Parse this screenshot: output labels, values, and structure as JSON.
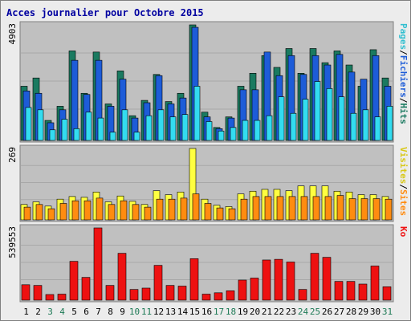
{
  "title": "Acces journalier pour Octobre 2015",
  "colors": {
    "panel_bg": "#c0c0c0",
    "hits": "#1a7a60",
    "files": "#1d5cd8",
    "pages": "#33dcf0",
    "visits": "#ffff40",
    "sites": "#ff8c10",
    "kb": "#ee1111",
    "weekend_label": "#1e7a56",
    "weekday_label": "#000000",
    "slash": "#000000"
  },
  "chart_data": [
    {
      "type": "bar",
      "panel": "hits-files-pages",
      "ymax_label": "4903",
      "ylim": [
        0,
        4903
      ],
      "legend": [
        {
          "text": "Pages",
          "color": "#33bfd0"
        },
        {
          "text": "/",
          "color": "#000000"
        },
        {
          "text": "Fichiers",
          "color": "#1d5cd8"
        },
        {
          "text": "/",
          "color": "#000000"
        },
        {
          "text": "Hits",
          "color": "#1a7a60"
        }
      ],
      "categories": [
        "1",
        "2",
        "3",
        "4",
        "5",
        "6",
        "7",
        "8",
        "9",
        "10",
        "11",
        "12",
        "13",
        "14",
        "15",
        "16",
        "17",
        "18",
        "19",
        "20",
        "21",
        "22",
        "23",
        "24",
        "25",
        "26",
        "27",
        "28",
        "29",
        "30",
        "31"
      ],
      "series": [
        {
          "name": "Hits",
          "values": [
            2300,
            2650,
            850,
            1450,
            3800,
            2000,
            3750,
            1550,
            2950,
            1050,
            1700,
            2800,
            1650,
            2000,
            4903,
            1200,
            550,
            1000,
            2300,
            2850,
            3600,
            3100,
            3900,
            2850,
            3900,
            3300,
            3800,
            3200,
            2300,
            3850,
            2650
          ]
        },
        {
          "name": "Fichiers",
          "values": [
            2100,
            2000,
            750,
            1300,
            3400,
            1950,
            3400,
            1450,
            2600,
            950,
            1600,
            2750,
            1550,
            1800,
            4800,
            1000,
            500,
            950,
            2150,
            2150,
            3750,
            2750,
            3600,
            2800,
            3600,
            3200,
            3650,
            2900,
            2600,
            3600,
            2300
          ]
        },
        {
          "name": "Pages",
          "values": [
            1400,
            1300,
            450,
            900,
            500,
            1200,
            950,
            350,
            1300,
            350,
            1050,
            1300,
            1000,
            1100,
            2300,
            800,
            400,
            550,
            850,
            850,
            1050,
            1850,
            1150,
            1750,
            2500,
            2200,
            1850,
            1150,
            1300,
            1000,
            1450
          ]
        }
      ]
    },
    {
      "type": "bar",
      "panel": "visits-sites",
      "ymax_label": "269",
      "ylim": [
        0,
        269
      ],
      "legend": [
        {
          "text": "Visites",
          "color": "#d8c818"
        },
        {
          "text": "/",
          "color": "#000000"
        },
        {
          "text": "Sites",
          "color": "#ff8c10"
        }
      ],
      "categories": [
        "1",
        "2",
        "3",
        "4",
        "5",
        "6",
        "7",
        "8",
        "9",
        "10",
        "11",
        "12",
        "13",
        "14",
        "15",
        "16",
        "17",
        "18",
        "19",
        "20",
        "21",
        "22",
        "23",
        "24",
        "25",
        "26",
        "27",
        "28",
        "29",
        "30",
        "31"
      ],
      "series": [
        {
          "name": "Visites",
          "values": [
            58,
            68,
            52,
            78,
            88,
            85,
            105,
            68,
            90,
            70,
            58,
            110,
            95,
            105,
            269,
            78,
            55,
            50,
            98,
            108,
            115,
            115,
            110,
            128,
            128,
            128,
            108,
            105,
            95,
            95,
            88
          ]
        },
        {
          "name": "Sites",
          "values": [
            48,
            58,
            42,
            62,
            72,
            72,
            82,
            58,
            72,
            58,
            48,
            78,
            78,
            82,
            98,
            62,
            45,
            42,
            78,
            88,
            88,
            88,
            88,
            88,
            88,
            88,
            92,
            80,
            80,
            80,
            78
          ]
        }
      ]
    },
    {
      "type": "bar",
      "panel": "kb",
      "ymax_label": "539553",
      "ylim": [
        0,
        539553
      ],
      "legend": [
        {
          "text": "Ko",
          "color": "#ee1111"
        }
      ],
      "categories": [
        "1",
        "2",
        "3",
        "4",
        "5",
        "6",
        "7",
        "8",
        "9",
        "10",
        "11",
        "12",
        "13",
        "14",
        "15",
        "16",
        "17",
        "18",
        "19",
        "20",
        "21",
        "22",
        "23",
        "24",
        "25",
        "26",
        "27",
        "28",
        "29",
        "30",
        "31"
      ],
      "series": [
        {
          "name": "Ko",
          "values": [
            115000,
            110000,
            42000,
            45000,
            290000,
            170000,
            539553,
            110000,
            350000,
            80000,
            90000,
            260000,
            110000,
            105000,
            310000,
            45000,
            55000,
            70000,
            150000,
            165000,
            300000,
            305000,
            285000,
            80000,
            350000,
            320000,
            140000,
            140000,
            120000,
            255000,
            100000
          ]
        }
      ]
    }
  ],
  "x_labels": [
    "1",
    "2",
    "3",
    "4",
    "5",
    "6",
    "7",
    "8",
    "9",
    "10",
    "11",
    "12",
    "13",
    "14",
    "15",
    "16",
    "17",
    "18",
    "19",
    "20",
    "21",
    "22",
    "23",
    "24",
    "25",
    "26",
    "27",
    "28",
    "29",
    "30",
    "31"
  ],
  "weekend_days": [
    "3",
    "4",
    "10",
    "11",
    "17",
    "18",
    "24",
    "25",
    "31"
  ]
}
